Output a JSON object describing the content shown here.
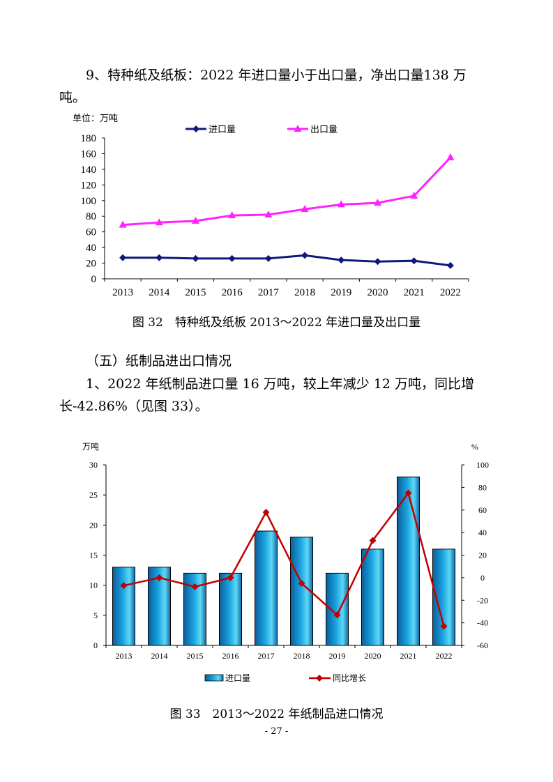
{
  "section9": {
    "heading": "9、特种纸及纸板：2022 年进口量小于出口量，净出口量138 万吨。"
  },
  "chart32": {
    "unit_label": "单位：万吨",
    "caption": "图 32　特种纸及纸板 2013～2022 年进口量及出口量"
  },
  "section5": {
    "heading": "（五）纸制品进出口情况",
    "paragraph": "1、2022 年纸制品进口量 16 万吨，较上年减少 12 万吨，同比增长-42.86%（见图 33）。"
  },
  "chart33": {
    "left_unit": "万吨",
    "right_unit": "%",
    "caption": "图 33　2013～2022 年纸制品进口情况"
  },
  "page_number": "- 27 -",
  "colors": {
    "import_line": "#0d1a7a",
    "export_line": "#ff22ff",
    "bar_fill": "#1aa3e0",
    "growth_line": "#c00000"
  },
  "chart_data": [
    {
      "type": "line",
      "title": "特种纸及纸板 2013～2022 年进口量及出口量",
      "ylabel": "单位：万吨",
      "ylim": [
        0,
        180
      ],
      "yticks": [
        0,
        20,
        40,
        60,
        80,
        100,
        120,
        140,
        160,
        180
      ],
      "categories": [
        "2013",
        "2014",
        "2015",
        "2016",
        "2017",
        "2018",
        "2019",
        "2020",
        "2021",
        "2022"
      ],
      "series": [
        {
          "name": "进口量",
          "values": [
            27,
            27,
            26,
            26,
            26,
            30,
            24,
            22,
            23,
            17
          ]
        },
        {
          "name": "出口量",
          "values": [
            69,
            72,
            74,
            81,
            82,
            89,
            95,
            97,
            106,
            155
          ]
        }
      ],
      "legend": "top"
    },
    {
      "type": "bar",
      "title": "2013～2022 年纸制品进口情况",
      "categories": [
        "2013",
        "2014",
        "2015",
        "2016",
        "2017",
        "2018",
        "2019",
        "2020",
        "2021",
        "2022"
      ],
      "series": [
        {
          "name": "进口量",
          "axis": "left",
          "kind": "bar",
          "values": [
            13,
            13,
            12,
            12,
            19,
            18,
            12,
            16,
            28,
            16
          ]
        },
        {
          "name": "同比增长",
          "axis": "right",
          "kind": "line",
          "values": [
            -7,
            0,
            -8,
            0,
            58,
            -5,
            -33,
            33,
            75,
            -43
          ]
        }
      ],
      "ylim": [
        0,
        30
      ],
      "yticks": [
        0,
        5,
        10,
        15,
        20,
        25,
        30
      ],
      "y2lim": [
        -60,
        100
      ],
      "y2ticks": [
        -60,
        -40,
        -20,
        0,
        20,
        40,
        60,
        80,
        100
      ],
      "legend": "bottom"
    }
  ]
}
